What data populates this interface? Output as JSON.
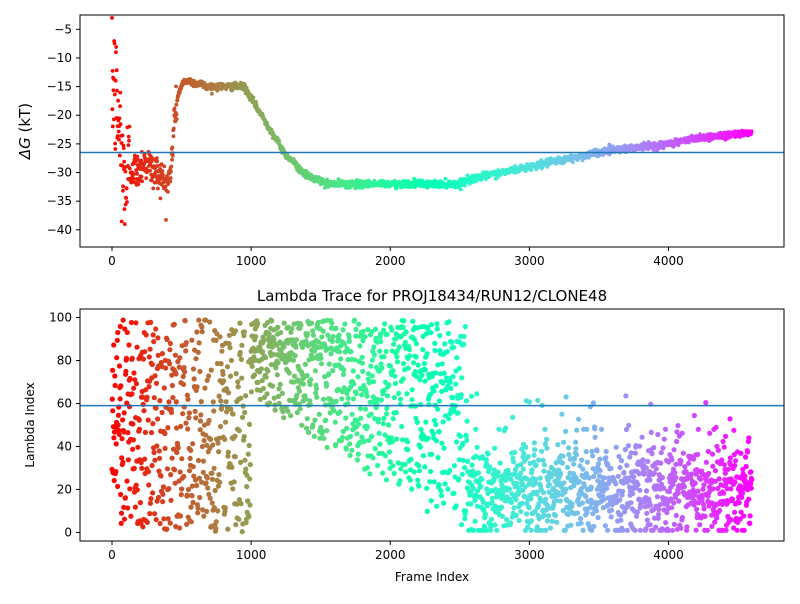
{
  "chart_data": [
    {
      "type": "scatter",
      "title": "",
      "xlabel": "",
      "ylabel_symbol": "ΔG",
      "ylabel_unit": " (kT)",
      "xlim": [
        -230,
        4830
      ],
      "ylim": [
        -43,
        -2.5
      ],
      "xticks": [
        0,
        1000,
        2000,
        3000,
        4000
      ],
      "yticks": [
        -40,
        -35,
        -30,
        -25,
        -20,
        -15,
        -10,
        -5
      ],
      "hline": -26.5,
      "hline_color": "#1f77b4",
      "colormap": "rainbow",
      "color_order": "frame index high to low (red at frame 0, violet at last frame)",
      "point_count": 4600,
      "series": [
        {
          "x": [
            0,
            20,
            40,
            60,
            80,
            100,
            120,
            150,
            180,
            200,
            230,
            260,
            300,
            340,
            380,
            420,
            450,
            480,
            520,
            560,
            600,
            640,
            680,
            720,
            760,
            800,
            850,
            900,
            950,
            1000,
            1050,
            1100,
            1150,
            1200,
            1250,
            1300,
            1350,
            1400,
            1450,
            1500,
            1550,
            1600,
            1700,
            1800,
            1900,
            2000,
            2100,
            2200,
            2300,
            2400,
            2480,
            2600,
            2800,
            3000,
            3200,
            3400,
            3600,
            3800,
            4000,
            4200,
            4400,
            4600
          ],
          "y": [
            -14,
            -16,
            -20,
            -24,
            -31,
            -32,
            -31,
            -29,
            -30,
            -29,
            -28,
            -28.5,
            -30,
            -30,
            -32,
            -31,
            -20,
            -16,
            -14,
            -14,
            -14.5,
            -14.5,
            -15,
            -15,
            -15,
            -15,
            -15,
            -15,
            -15,
            -17,
            -19,
            -21,
            -23,
            -25,
            -27,
            -28,
            -29.5,
            -30.5,
            -31,
            -31.5,
            -32,
            -32,
            -32,
            -32,
            -32,
            -32,
            -32,
            -32,
            -32,
            -32,
            -32,
            -31,
            -30,
            -29,
            -28,
            -27,
            -26,
            -25.5,
            -25,
            -24,
            -23.5,
            -23
          ]
        }
      ]
    },
    {
      "type": "scatter",
      "title": "Lambda Trace for PROJ18434/RUN12/CLONE48",
      "xlabel": "Frame Index",
      "ylabel": "Lambda Index",
      "xlim": [
        -230,
        4830
      ],
      "ylim": [
        -4,
        104
      ],
      "xticks": [
        0,
        1000,
        2000,
        3000,
        4000
      ],
      "yticks": [
        0,
        20,
        40,
        60,
        80,
        100
      ],
      "hline": 59,
      "hline_color": "#1f77b4",
      "colormap": "rainbow",
      "color_order": "frame index high to low (red at frame 0, violet at last frame)",
      "point_count": 4600,
      "segments": [
        {
          "x_range": [
            0,
            1000
          ],
          "y_range": [
            0,
            100
          ],
          "distribution": "uniform"
        },
        {
          "x_range": [
            1000,
            2550
          ],
          "y_lower_from": [
            60,
            0
          ],
          "y_upper": 100,
          "distribution": "above a descending boundary, densest near the top"
        },
        {
          "x_range": [
            2550,
            4600
          ],
          "y_range": [
            0,
            45
          ],
          "distribution": "concentrated near 20, occasional points up to 66"
        }
      ]
    }
  ]
}
